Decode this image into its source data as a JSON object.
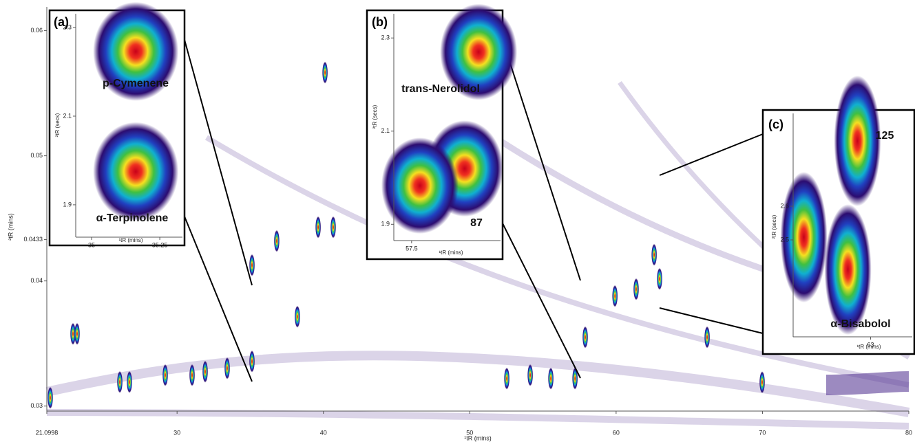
{
  "chart_data": [
    {
      "type": "contour",
      "x_label": "¹tR (mins)",
      "y_label": "²tR (mins)",
      "xlim": [
        21.0998,
        80
      ],
      "xticks": [
        21.0998,
        30,
        40,
        50,
        60,
        70,
        80
      ],
      "ylim": [
        0.0296,
        0.0619
      ],
      "yticks": [
        0.03,
        0.04,
        0.0433,
        0.05,
        0.06
      ],
      "peaks": {
        "x": [
          21.335,
          22.888,
          23.17,
          26.087,
          26.746,
          29.192,
          31.027,
          31.921,
          33.426,
          35.12,
          35.12,
          36.81,
          38.22,
          39.64,
          40.67,
          40.11,
          52.53,
          54.13,
          55.54,
          57.19,
          57.89,
          59.92,
          61.37,
          62.6,
          62.97,
          66.22,
          69.98
        ],
        "y": [
          0.03066,
          0.03577,
          0.03577,
          0.03192,
          0.03192,
          0.03247,
          0.03247,
          0.03275,
          0.03302,
          0.03357,
          0.04126,
          0.04319,
          0.03714,
          0.04429,
          0.04429,
          0.05665,
          0.0322,
          0.03247,
          0.0322,
          0.0322,
          0.0355,
          0.03879,
          0.03934,
          0.04209,
          0.04016,
          0.0355,
          0.0319
        ]
      }
    },
    {
      "type": "contour",
      "panel": "(a)",
      "x_label": "¹tR (mins)",
      "y_label": "²tR (secs)",
      "xlim": [
        34.942,
        35.333
      ],
      "xticks": [
        35,
        35.25
      ],
      "ylim": [
        1.827,
        2.331
      ],
      "yticks": [
        1.9,
        2.1,
        2.3
      ],
      "annotations": [
        "p-Cymenene",
        "α-Terpinolene"
      ],
      "peaks": {
        "x": [
          35.162,
          35.162
        ],
        "y": [
          2.246,
          1.975
        ]
      }
    },
    {
      "type": "contour",
      "panel": "(b)",
      "x_label": "¹tR (mins)",
      "y_label": "²tR (secs)",
      "xlim": [
        57.44,
        57.8
      ],
      "xticks": [
        57.5
      ],
      "ylim": [
        1.865,
        2.352
      ],
      "yticks": [
        1.9,
        2.1,
        2.3
      ],
      "annotations": [
        "trans-Nerolidol",
        "87"
      ],
      "peaks": {
        "x": [
          57.726,
          57.679,
          57.528
        ],
        "y": [
          2.27,
          2.0197,
          1.983
        ]
      }
    },
    {
      "type": "contour",
      "panel": "(c)",
      "x_label": "¹tR (mins)",
      "y_label": "²tR (secs)",
      "xlim": [
        62.87,
        63.07
      ],
      "xticks": [
        63
      ],
      "ylim": [
        2.2122,
        2.8755
      ],
      "yticks": [
        2.5,
        2.6
      ],
      "annotations": [
        "125",
        "α-Bisabolol"
      ],
      "peaks": {
        "x": [
          62.888,
          62.962,
          62.978
        ],
        "y": [
          2.508,
          2.412,
          2.794
        ]
      }
    }
  ]
}
